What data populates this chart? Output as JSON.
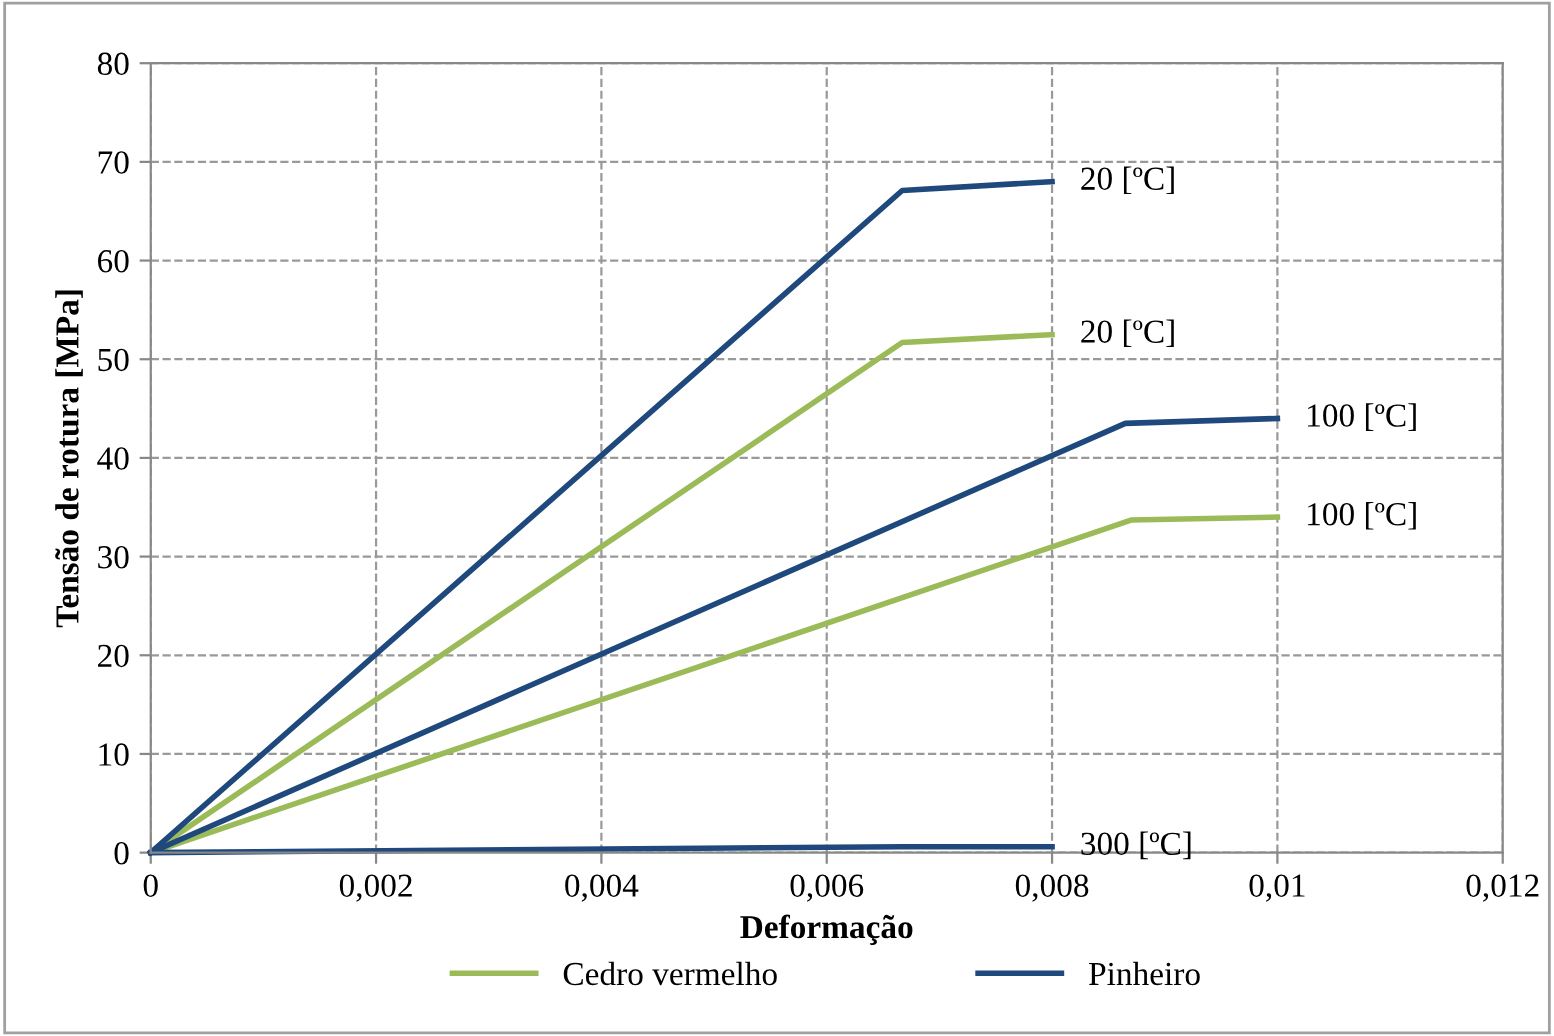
{
  "chart_data": {
    "type": "line",
    "xlabel": "Deformação",
    "ylabel": "Tensão de rotura [MPa]",
    "xlim": [
      0,
      0.012
    ],
    "ylim": [
      0,
      80
    ],
    "xticks": [
      0,
      {
        "value": 0.002,
        "label": "0,002"
      },
      {
        "value": 0.004,
        "label": "0,004"
      },
      {
        "value": 0.006,
        "label": "0,006"
      },
      {
        "value": 0.008,
        "label": "0,008"
      },
      {
        "value": 0.01,
        "label": "0,01"
      },
      {
        "value": 0.012,
        "label": "0,012"
      }
    ],
    "yticks": [
      0,
      10,
      20,
      30,
      40,
      50,
      60,
      70,
      80
    ],
    "grid": true,
    "legend": "bottom",
    "marker": "none",
    "line_style": "solid",
    "series": [
      {
        "name": "Cedro vermelho",
        "color": "#9bbb59",
        "x": [
          0,
          0.00667,
          0.008
        ],
        "values": [
          0,
          51.7,
          52.5
        ]
      },
      {
        "color": "#9bbb59",
        "x": [
          0,
          0.0087,
          0.01
        ],
        "values": [
          0,
          33.7,
          34
        ]
      },
      {
        "name": "Pinheiro",
        "color": "#1f497d",
        "x": [
          0,
          0.00667,
          0.008
        ],
        "values": [
          0,
          67.1,
          68
        ]
      },
      {
        "color": "#1f497d",
        "x": [
          0,
          0.00865,
          0.01
        ],
        "values": [
          0,
          43.5,
          44
        ]
      },
      {
        "color": "#1f497d",
        "x": [
          0,
          0.00667,
          0.008
        ],
        "values": [
          0,
          0.6,
          0.6
        ]
      }
    ],
    "annotations": [
      "20 [ºC]",
      "100 [ºC]",
      "20 [ºC]",
      "100 [ºC]",
      "300 [ºC]"
    ]
  }
}
